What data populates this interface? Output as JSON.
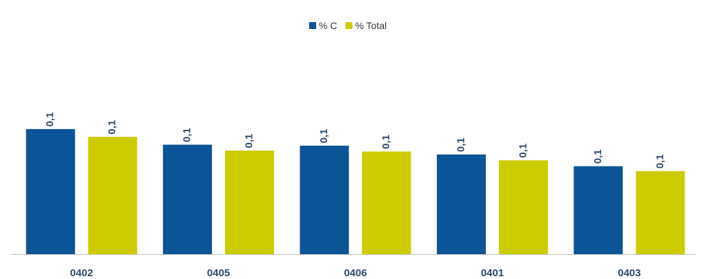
{
  "chart_data": {
    "type": "bar",
    "categories": [
      "0402",
      "0405",
      "0406",
      "0401",
      "0403"
    ],
    "series": [
      {
        "name": "% C",
        "values": [
          0.128,
          0.112,
          0.111,
          0.102,
          0.09
        ],
        "labels": [
          "0,1",
          "0,1",
          "0,1",
          "0,1",
          "0,1"
        ],
        "color": "#0b5596"
      },
      {
        "name": "% Total",
        "values": [
          0.12,
          0.106,
          0.105,
          0.096,
          0.085
        ],
        "labels": [
          "0,1",
          "0,1",
          "0,1",
          "0,1",
          "0,1"
        ],
        "color": "#cccc00"
      }
    ],
    "ylim": [
      0,
      0.2
    ],
    "legend_position": "top-center",
    "grid": false,
    "axis_color": "#bfbfbf",
    "label_color": "#2f4a6b"
  }
}
